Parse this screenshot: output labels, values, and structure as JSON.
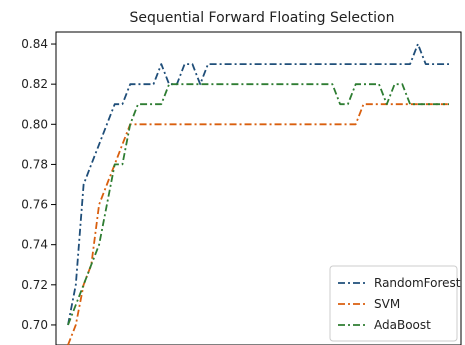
{
  "chart_data": {
    "type": "line",
    "title": "Sequential Forward Floating Selection",
    "xlabel": "",
    "ylabel": "",
    "x": [
      1,
      2,
      3,
      4,
      5,
      6,
      7,
      8,
      9,
      10,
      11,
      12,
      13,
      14,
      15,
      16,
      17,
      18,
      19,
      20,
      21,
      22,
      23,
      24,
      25,
      26,
      27,
      28,
      29,
      30,
      31,
      32,
      33,
      34,
      35,
      36,
      37,
      38,
      39,
      40,
      41,
      42,
      43,
      44,
      45,
      46,
      47,
      48,
      49,
      50
    ],
    "xlim": [
      1,
      50
    ],
    "ylim": [
      0.69,
      0.845
    ],
    "yticks": [
      "0.70",
      "0.72",
      "0.74",
      "0.76",
      "0.78",
      "0.80",
      "0.82",
      "0.84"
    ],
    "ytick_values": [
      0.7,
      0.72,
      0.74,
      0.76,
      0.78,
      0.8,
      0.82,
      0.84
    ],
    "grid": false,
    "legend_position": "bottom-right",
    "series": [
      {
        "name": "RandomForest",
        "color": "#1f4e79",
        "values": [
          0.7,
          0.72,
          0.77,
          0.78,
          0.79,
          0.8,
          0.81,
          0.81,
          0.82,
          0.82,
          0.82,
          0.82,
          0.83,
          0.82,
          0.82,
          0.83,
          0.83,
          0.82,
          0.83,
          0.83,
          0.83,
          0.83,
          0.83,
          0.83,
          0.83,
          0.83,
          0.83,
          0.83,
          0.83,
          0.83,
          0.83,
          0.83,
          0.83,
          0.83,
          0.83,
          0.83,
          0.83,
          0.83,
          0.83,
          0.83,
          0.83,
          0.83,
          0.83,
          0.83,
          0.83,
          0.84,
          0.83,
          0.83,
          0.83,
          0.83
        ]
      },
      {
        "name": "SVM",
        "color": "#d95f0e",
        "values": [
          0.69,
          0.7,
          0.72,
          0.73,
          0.76,
          0.77,
          0.78,
          0.79,
          0.8,
          0.8,
          0.8,
          0.8,
          0.8,
          0.8,
          0.8,
          0.8,
          0.8,
          0.8,
          0.8,
          0.8,
          0.8,
          0.8,
          0.8,
          0.8,
          0.8,
          0.8,
          0.8,
          0.8,
          0.8,
          0.8,
          0.8,
          0.8,
          0.8,
          0.8,
          0.8,
          0.8,
          0.8,
          0.8,
          0.81,
          0.81,
          0.81,
          0.81,
          0.81,
          0.81,
          0.81,
          0.81,
          0.81,
          0.81,
          0.81,
          0.81
        ]
      },
      {
        "name": "AdaBoost",
        "color": "#2e7d32",
        "values": [
          0.7,
          0.71,
          0.72,
          0.73,
          0.74,
          0.76,
          0.78,
          0.78,
          0.8,
          0.81,
          0.81,
          0.81,
          0.81,
          0.82,
          0.82,
          0.82,
          0.82,
          0.82,
          0.82,
          0.82,
          0.82,
          0.82,
          0.82,
          0.82,
          0.82,
          0.82,
          0.82,
          0.82,
          0.82,
          0.82,
          0.82,
          0.82,
          0.82,
          0.82,
          0.82,
          0.81,
          0.81,
          0.82,
          0.82,
          0.82,
          0.82,
          0.81,
          0.82,
          0.82,
          0.81,
          0.81,
          0.81,
          0.81,
          0.81,
          0.81
        ]
      }
    ]
  }
}
